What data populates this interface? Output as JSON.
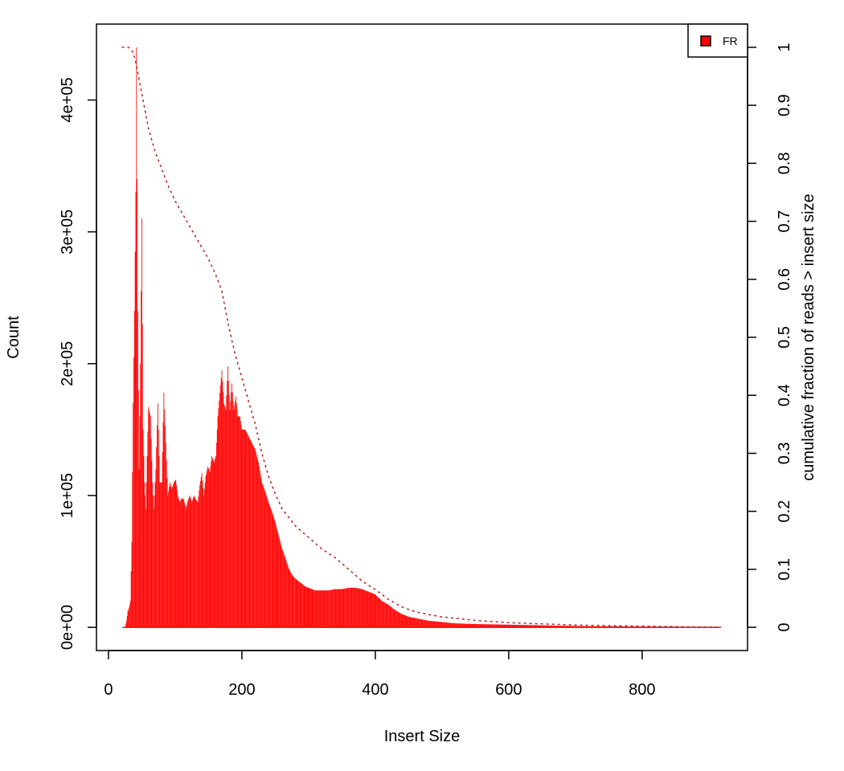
{
  "chart_data": {
    "type": "bar",
    "xlabel": "Insert Size",
    "ylabel": "Count",
    "y2label": "cumulative fraction of reads > insert size",
    "xlim": [
      -18,
      958
    ],
    "ylim": [
      -17600,
      457600
    ],
    "y2lim": [
      -0.04,
      1.04
    ],
    "x_ticks": [
      {
        "value": 0,
        "label": "0"
      },
      {
        "value": 200,
        "label": "200"
      },
      {
        "value": 400,
        "label": "400"
      },
      {
        "value": 600,
        "label": "600"
      },
      {
        "value": 800,
        "label": "800"
      }
    ],
    "y_ticks": [
      {
        "value": 0,
        "label": "0e+00"
      },
      {
        "value": 100000,
        "label": "1e+05"
      },
      {
        "value": 200000,
        "label": "2e+05"
      },
      {
        "value": 300000,
        "label": "3e+05"
      },
      {
        "value": 400000,
        "label": "4e+05"
      }
    ],
    "y2_ticks": [
      {
        "value": 0,
        "label": "0"
      },
      {
        "value": 0.1,
        "label": "0.1"
      },
      {
        "value": 0.2,
        "label": "0.2"
      },
      {
        "value": 0.3,
        "label": "0.3"
      },
      {
        "value": 0.4,
        "label": "0.4"
      },
      {
        "value": 0.5,
        "label": "0.5"
      },
      {
        "value": 0.6,
        "label": "0.6"
      },
      {
        "value": 0.7,
        "label": "0.7"
      },
      {
        "value": 0.8,
        "label": "0.8"
      },
      {
        "value": 0.9,
        "label": "0.9"
      },
      {
        "value": 1,
        "label": "1"
      }
    ],
    "legend": {
      "position": "top-right",
      "entries": [
        "FR"
      ]
    },
    "grid": false,
    "series": [
      {
        "name": "FR",
        "type": "histogram",
        "color": "#ff0000",
        "envelope": [
          [
            21,
            0
          ],
          [
            25,
            0
          ],
          [
            27,
            5000
          ],
          [
            29,
            12000
          ],
          [
            31,
            15000
          ],
          [
            33,
            20000
          ],
          [
            35,
            65000
          ],
          [
            37,
            170000
          ],
          [
            39,
            240000
          ],
          [
            41,
            330000
          ],
          [
            42,
            440000
          ],
          [
            44,
            240000
          ],
          [
            46,
            120000
          ],
          [
            48,
            200000
          ],
          [
            50,
            310000
          ],
          [
            52,
            150000
          ],
          [
            54,
            110000
          ],
          [
            56,
            90000
          ],
          [
            58,
            130000
          ],
          [
            60,
            167000
          ],
          [
            63,
            160000
          ],
          [
            66,
            110000
          ],
          [
            68,
            90000
          ],
          [
            71,
            120000
          ],
          [
            74,
            170000
          ],
          [
            77,
            110000
          ],
          [
            80,
            110000
          ],
          [
            83,
            178000
          ],
          [
            86,
            140000
          ],
          [
            89,
            100000
          ],
          [
            92,
            110000
          ],
          [
            95,
            105000
          ],
          [
            98,
            110000
          ],
          [
            101,
            112000
          ],
          [
            104,
            100000
          ],
          [
            107,
            95000
          ],
          [
            110,
            98000
          ],
          [
            113,
            97000
          ],
          [
            116,
            90000
          ],
          [
            119,
            96000
          ],
          [
            122,
            100000
          ],
          [
            125,
            95000
          ],
          [
            128,
            100000
          ],
          [
            131,
            97000
          ],
          [
            134,
            95000
          ],
          [
            137,
            108000
          ],
          [
            140,
            117000
          ],
          [
            143,
            100000
          ],
          [
            146,
            115000
          ],
          [
            149,
            122000
          ],
          [
            152,
            118000
          ],
          [
            155,
            130000
          ],
          [
            158,
            125000
          ],
          [
            161,
            130000
          ],
          [
            164,
            160000
          ],
          [
            167,
            178000
          ],
          [
            170,
            195000
          ],
          [
            173,
            170000
          ],
          [
            176,
            165000
          ],
          [
            179,
            198000
          ],
          [
            182,
            165000
          ],
          [
            185,
            185000
          ],
          [
            188,
            165000
          ],
          [
            191,
            175000
          ],
          [
            194,
            160000
          ],
          [
            197,
            160000
          ],
          [
            200,
            150000
          ],
          [
            205,
            150000
          ],
          [
            210,
            145000
          ],
          [
            215,
            140000
          ],
          [
            220,
            135000
          ],
          [
            225,
            125000
          ],
          [
            230,
            110000
          ],
          [
            235,
            103000
          ],
          [
            240,
            95000
          ],
          [
            245,
            88000
          ],
          [
            250,
            80000
          ],
          [
            255,
            70000
          ],
          [
            260,
            60000
          ],
          [
            265,
            53000
          ],
          [
            270,
            45000
          ],
          [
            275,
            40000
          ],
          [
            280,
            37000
          ],
          [
            285,
            35000
          ],
          [
            290,
            33000
          ],
          [
            295,
            31000
          ],
          [
            300,
            30000
          ],
          [
            310,
            28000
          ],
          [
            320,
            28000
          ],
          [
            330,
            28000
          ],
          [
            340,
            29000
          ],
          [
            350,
            29000
          ],
          [
            360,
            30000
          ],
          [
            370,
            30000
          ],
          [
            380,
            29000
          ],
          [
            390,
            27000
          ],
          [
            400,
            25000
          ],
          [
            410,
            20000
          ],
          [
            420,
            17000
          ],
          [
            430,
            13000
          ],
          [
            440,
            10000
          ],
          [
            450,
            8000
          ],
          [
            460,
            7000
          ],
          [
            470,
            6000
          ],
          [
            480,
            5000
          ],
          [
            500,
            4000
          ],
          [
            520,
            3000
          ],
          [
            550,
            2500
          ],
          [
            600,
            2000
          ],
          [
            650,
            1500
          ],
          [
            700,
            1000
          ],
          [
            800,
            500
          ],
          [
            900,
            300
          ],
          [
            918,
            200
          ]
        ]
      },
      {
        "name": "cumulative",
        "type": "line",
        "axis": "right",
        "color": "#b22222",
        "dash": "dotted",
        "points": [
          [
            20,
            1.0
          ],
          [
            30,
            1.0
          ],
          [
            35,
            0.995
          ],
          [
            40,
            0.98
          ],
          [
            45,
            0.95
          ],
          [
            50,
            0.92
          ],
          [
            55,
            0.89
          ],
          [
            60,
            0.86
          ],
          [
            65,
            0.84
          ],
          [
            70,
            0.82
          ],
          [
            80,
            0.79
          ],
          [
            90,
            0.76
          ],
          [
            100,
            0.735
          ],
          [
            110,
            0.715
          ],
          [
            120,
            0.695
          ],
          [
            130,
            0.675
          ],
          [
            140,
            0.655
          ],
          [
            150,
            0.635
          ],
          [
            160,
            0.61
          ],
          [
            170,
            0.58
          ],
          [
            180,
            0.52
          ],
          [
            190,
            0.47
          ],
          [
            200,
            0.43
          ],
          [
            210,
            0.39
          ],
          [
            220,
            0.35
          ],
          [
            230,
            0.3
          ],
          [
            240,
            0.26
          ],
          [
            250,
            0.23
          ],
          [
            260,
            0.205
          ],
          [
            270,
            0.19
          ],
          [
            280,
            0.175
          ],
          [
            290,
            0.165
          ],
          [
            300,
            0.155
          ],
          [
            320,
            0.135
          ],
          [
            340,
            0.12
          ],
          [
            360,
            0.1
          ],
          [
            380,
            0.08
          ],
          [
            400,
            0.065
          ],
          [
            420,
            0.048
          ],
          [
            440,
            0.035
          ],
          [
            460,
            0.027
          ],
          [
            480,
            0.022
          ],
          [
            500,
            0.018
          ],
          [
            550,
            0.012
          ],
          [
            600,
            0.008
          ],
          [
            650,
            0.006
          ],
          [
            700,
            0.004
          ],
          [
            800,
            0.002
          ],
          [
            918,
            0.0
          ]
        ]
      }
    ]
  }
}
